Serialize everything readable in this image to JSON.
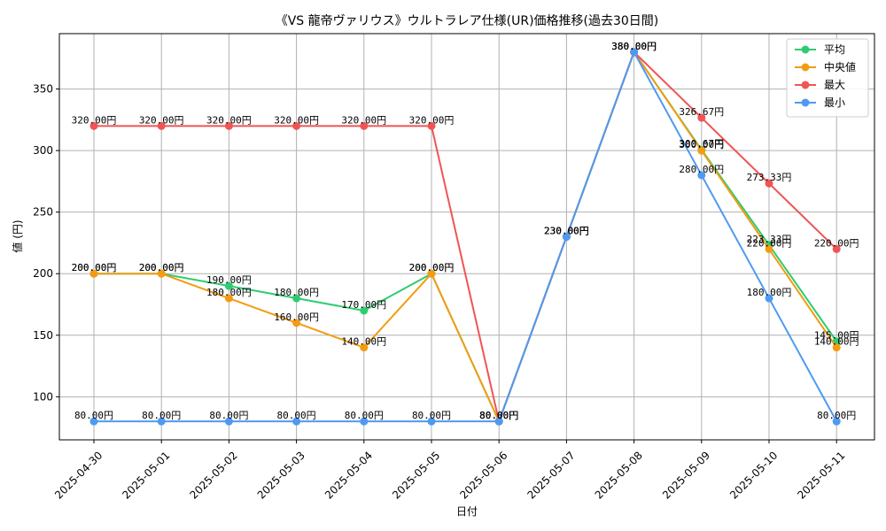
{
  "chart_data": {
    "type": "line",
    "title": "《VS 龍帝ヴァリウス》ウルトラレア仕様(UR)価格推移(過去30日間)",
    "xlabel": "日付",
    "ylabel": "値 (円)",
    "ylim": [
      65,
      395
    ],
    "yticks": [
      100,
      150,
      200,
      250,
      300,
      350
    ],
    "grid": true,
    "legend_position": "top-right",
    "value_suffix": "円",
    "categories": [
      "2025-04-30",
      "2025-05-01",
      "2025-05-02",
      "2025-05-03",
      "2025-05-04",
      "2025-05-05",
      "2025-05-06",
      "2025-05-07",
      "2025-05-08",
      "2025-05-09",
      "2025-05-10",
      "2025-05-11"
    ],
    "series": [
      {
        "name": "平均",
        "color": "#2ecc71",
        "values": [
          200,
          200,
          190,
          180,
          170,
          200,
          80,
          230,
          380,
          300.67,
          223.33,
          145
        ]
      },
      {
        "name": "中央値",
        "color": "#f39c12",
        "values": [
          200,
          200,
          180,
          160,
          140,
          200,
          80,
          230,
          380,
          300,
          220,
          140
        ]
      },
      {
        "name": "最大",
        "color": "#f05454",
        "values": [
          320,
          320,
          320,
          320,
          320,
          320,
          80,
          230,
          380,
          326.67,
          273.33,
          220
        ]
      },
      {
        "name": "最小",
        "color": "#4e9af1",
        "values": [
          80,
          80,
          80,
          80,
          80,
          80,
          80,
          230,
          380,
          280,
          180,
          80
        ]
      }
    ]
  }
}
